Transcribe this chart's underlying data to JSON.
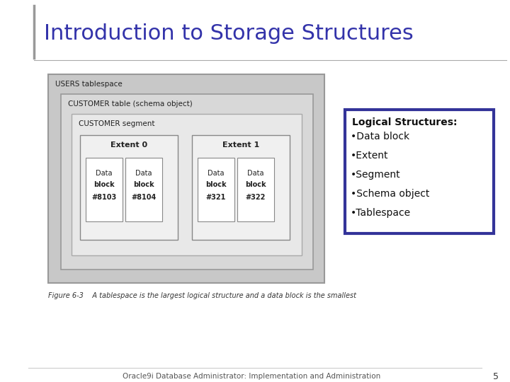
{
  "title": "Introduction to Storage Structures",
  "title_color": "#3333aa",
  "title_fontsize": 22,
  "bg_color": "#ffffff",
  "logical_structures_header": "Logical Structures:",
  "logical_structures_items": [
    "Data block",
    "Extent",
    "Segment",
    "Schema object",
    "Tablespace"
  ],
  "box_border_color": "#333399",
  "figure_caption": "Figure 6-3    A tablespace is the largest logical structure and a data block is the smallest",
  "footer_text": "Oracle9i Database Administrator: Implementation and Administration",
  "footer_page": "5",
  "diagram_bg": "#c8c8c8",
  "inner_bg": "#d8d8d8",
  "seg_bg": "#e8e8e8",
  "extent_bg": "#f0f0f0",
  "data_block_bg": "#ffffff",
  "edge_color": "#888888"
}
